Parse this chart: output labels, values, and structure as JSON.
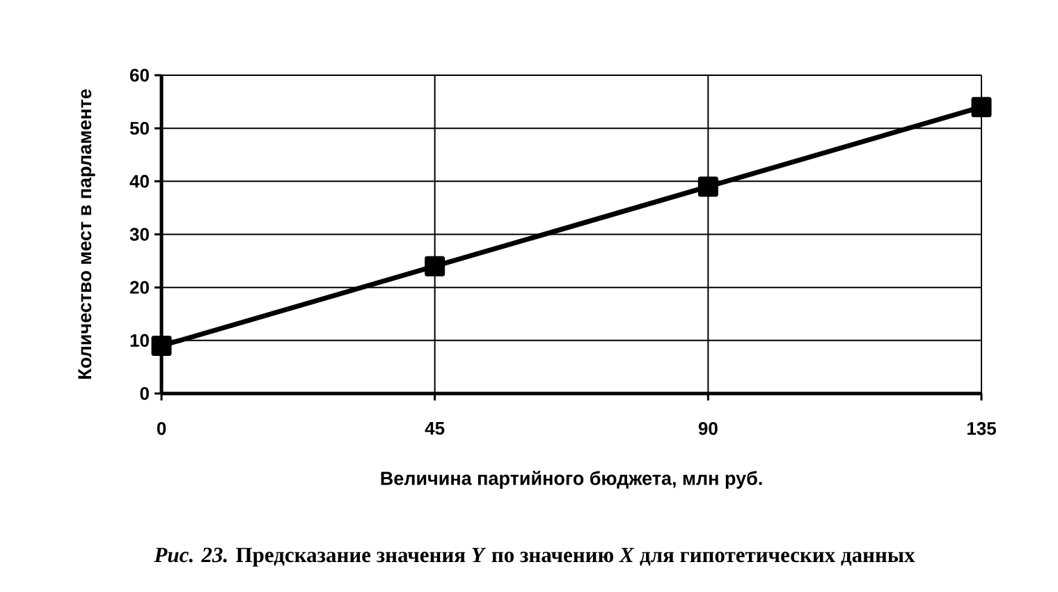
{
  "chart_data": {
    "type": "line",
    "xlabel": "Величина партийного бюджета, млн руб.",
    "ylabel": "Количество мест в парламенте",
    "x": [
      0,
      45,
      90,
      135
    ],
    "series": [
      {
        "color": "#000000",
        "values": [
          9,
          24,
          39,
          54
        ]
      }
    ],
    "xlim": [
      0,
      135
    ],
    "xticks": [
      0,
      45,
      90,
      135
    ],
    "ylim": [
      0,
      60
    ],
    "yticks": [
      0,
      10,
      20,
      30,
      40,
      50,
      60
    ],
    "grid": true,
    "marker": "square",
    "line_style": "solid",
    "annotations": [
      "*Рис. 23.* Предсказание значения *Y* по значению *X* для гипотетических данных"
    ]
  }
}
